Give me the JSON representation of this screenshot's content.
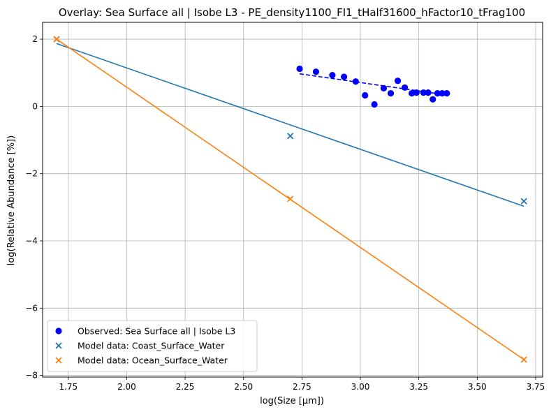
{
  "chart_data": {
    "type": "scatter",
    "title": "Overlay: Sea Surface all | Isobe L3 - PE_density1100_FI1_tHalf31600_hFactor10_tFrag100",
    "xlabel": "log(Size [µm])",
    "ylabel": "log(Relative Abundance [%])",
    "xlim": [
      1.64,
      3.78
    ],
    "ylim": [
      -8.05,
      2.5
    ],
    "xticks": [
      1.75,
      2.0,
      2.25,
      2.5,
      2.75,
      3.0,
      3.25,
      3.5,
      3.75
    ],
    "xtick_labels": [
      "1.75",
      "2.00",
      "2.25",
      "2.50",
      "2.75",
      "3.00",
      "3.25",
      "3.50",
      "3.75"
    ],
    "yticks": [
      -8,
      -6,
      -4,
      -2,
      0,
      2
    ],
    "ytick_labels": [
      "−8",
      "−6",
      "−4",
      "−2",
      "0",
      "2"
    ],
    "grid": true,
    "legend_position": "lower-left",
    "series": [
      {
        "name": "Observed: Sea Surface all | Isobe L3",
        "kind": "scatter-dot",
        "color": "#0000ff",
        "x": [
          2.74,
          2.81,
          2.88,
          2.93,
          2.98,
          3.02,
          3.06,
          3.1,
          3.13,
          3.16,
          3.19,
          3.22,
          3.24,
          3.27,
          3.29,
          3.31,
          3.33,
          3.35,
          3.37
        ],
        "y": [
          1.12,
          1.03,
          0.93,
          0.88,
          0.74,
          0.33,
          0.06,
          0.54,
          0.39,
          0.76,
          0.56,
          0.39,
          0.41,
          0.41,
          0.41,
          0.21,
          0.39,
          0.39,
          0.39
        ]
      },
      {
        "name": "Model data: Coast_Surface_Water",
        "kind": "scatter-x",
        "color": "#1f77b4",
        "x": [
          1.7,
          2.7,
          3.7
        ],
        "y": [
          2.0,
          -0.88,
          -2.82
        ]
      },
      {
        "name": "Model data: Ocean_Surface_Water",
        "kind": "scatter-x",
        "color": "#ff7f0e",
        "x": [
          1.7,
          2.7,
          3.7
        ],
        "y": [
          2.0,
          -2.75,
          -7.53
        ]
      }
    ],
    "fit_lines": [
      {
        "color": "#0000ff",
        "style": "dashed",
        "x": [
          2.74,
          3.37
        ],
        "y": [
          0.97,
          0.34
        ]
      },
      {
        "color": "#1f77b4",
        "style": "solid",
        "x": [
          1.7,
          3.7
        ],
        "y": [
          1.87,
          -2.97
        ]
      },
      {
        "color": "#ff7f0e",
        "style": "solid",
        "x": [
          1.7,
          3.7
        ],
        "y": [
          2.0,
          -7.53
        ]
      }
    ]
  }
}
